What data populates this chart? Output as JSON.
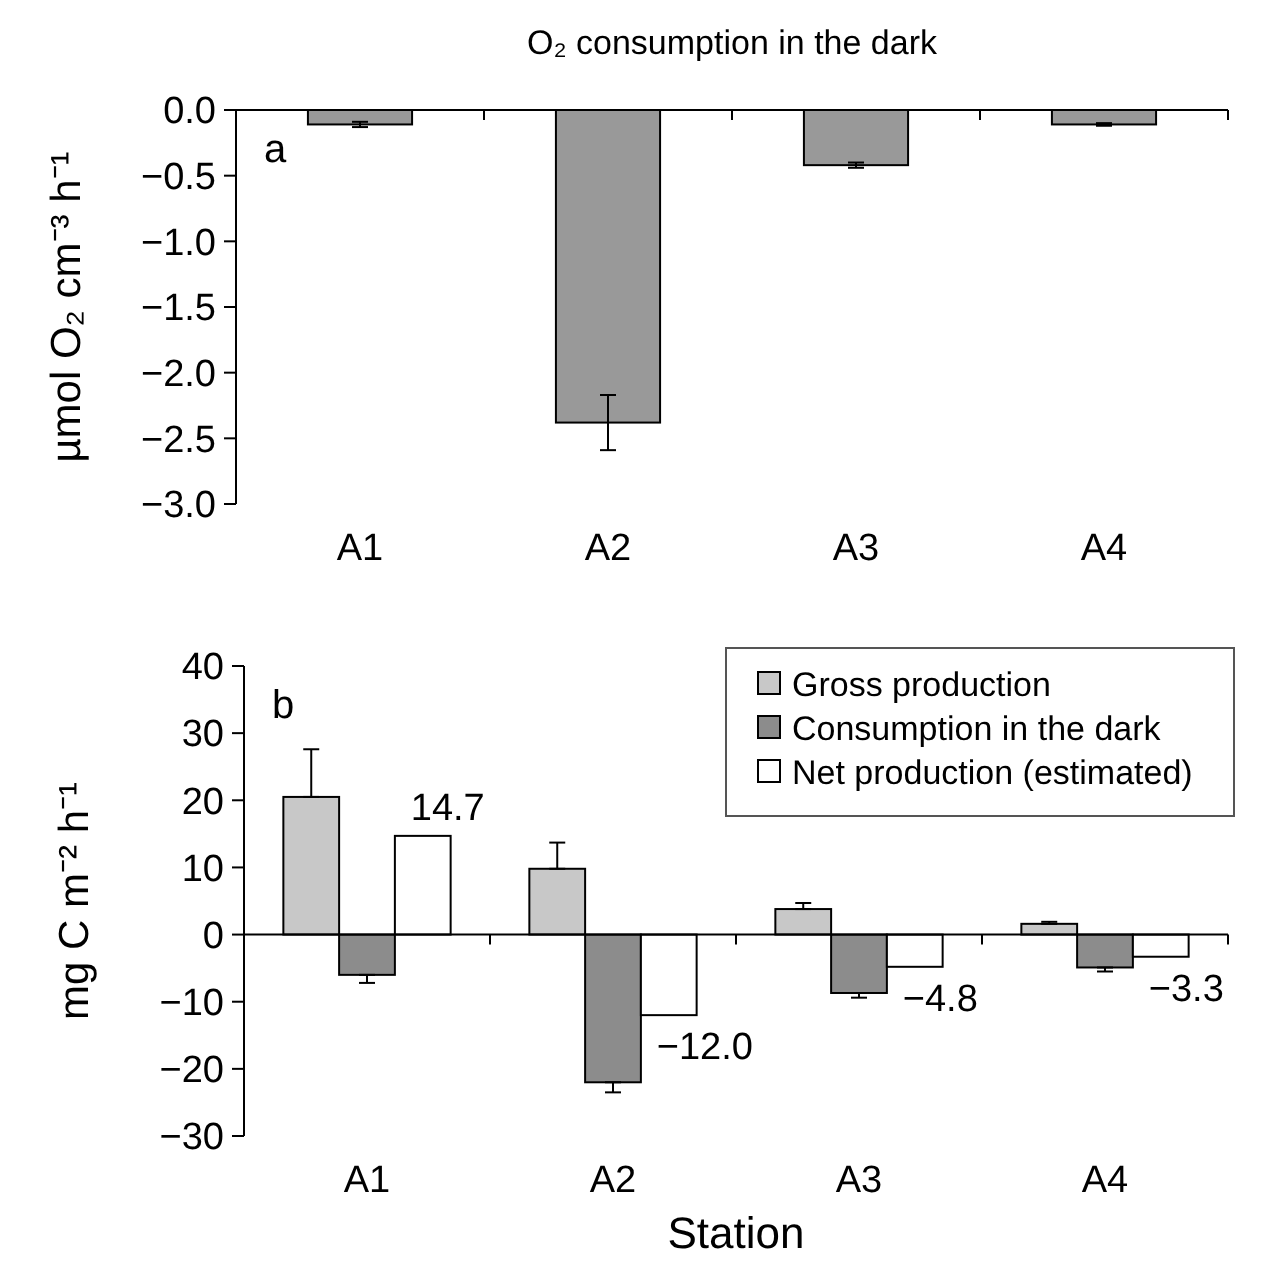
{
  "chart_data": [
    {
      "type": "bar",
      "title": "O₂ consumption in the dark",
      "ylabel": "µmol O₂ cm⁻³ h⁻¹",
      "annotations": [
        "a"
      ],
      "categories": [
        "A1",
        "A2",
        "A3",
        "A4"
      ],
      "series": [
        {
          "color": "#999999",
          "values": [
            -0.11,
            -2.38,
            -0.42,
            -0.11
          ],
          "errors": [
            0.02,
            0.21,
            0.02,
            0.01
          ]
        }
      ],
      "ylim": [
        -3,
        0
      ],
      "yticks": [
        {
          "value": 0,
          "label": "0.0"
        },
        {
          "value": -0.5,
          "label": "−0.5"
        },
        {
          "value": -1,
          "label": "−1.0"
        },
        {
          "value": -1.5,
          "label": "−1.5"
        },
        {
          "value": -2,
          "label": "−2.0"
        },
        {
          "value": -2.5,
          "label": "−2.5"
        },
        {
          "value": -3,
          "label": "−3.0"
        }
      ],
      "legend": false
    },
    {
      "type": "bar",
      "xlabel": "Station",
      "ylabel": "mg C m⁻² h⁻¹",
      "annotations": [
        "b"
      ],
      "categories": [
        "A1",
        "A2",
        "A3",
        "A4"
      ],
      "series": [
        {
          "name": "Gross production",
          "color": "#c8c8c8",
          "values": [
            20.5,
            9.8,
            3.8,
            1.6
          ],
          "errors": [
            [
              20.5,
              27.6
            ],
            [
              9.8,
              13.7
            ],
            [
              3.8,
              4.7
            ],
            [
              1.6,
              1.9
            ]
          ]
        },
        {
          "name": "Consumption in the dark",
          "color": "#8c8c8c",
          "values": [
            -6,
            -22,
            -8.7,
            -4.9
          ],
          "errors": [
            [
              -7.2,
              -6
            ],
            [
              -23.5,
              -22
            ],
            [
              -9.4,
              -8.7
            ],
            [
              -5.5,
              -4.9
            ]
          ]
        },
        {
          "name": "Net production (estimated)",
          "color": "#ffffff",
          "values": [
            14.7,
            -12.0,
            -4.8,
            -3.3
          ],
          "value_labels": [
            "14.7",
            "−12.0",
            "−4.8",
            "−3.3"
          ]
        }
      ],
      "ylim": [
        -30,
        40
      ],
      "yticks": [
        {
          "value": 40,
          "label": "40"
        },
        {
          "value": 30,
          "label": "30"
        },
        {
          "value": 20,
          "label": "20"
        },
        {
          "value": 10,
          "label": "10"
        },
        {
          "value": 0,
          "label": "0"
        },
        {
          "value": -10,
          "label": "−10"
        },
        {
          "value": -20,
          "label": "−20"
        },
        {
          "value": -30,
          "label": "−30"
        }
      ],
      "legend": "top right"
    }
  ]
}
